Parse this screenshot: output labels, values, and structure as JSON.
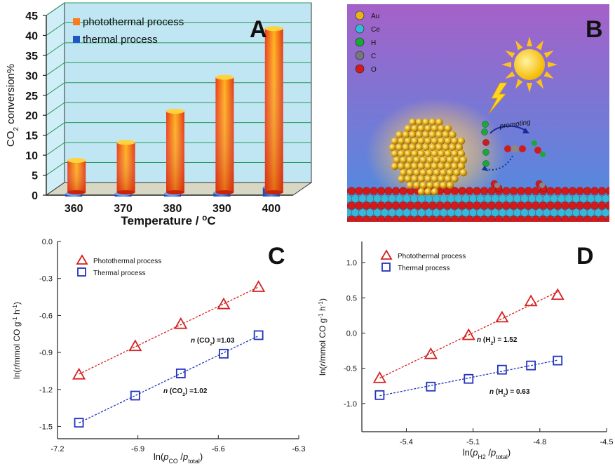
{
  "panels": {
    "A": {
      "letter": "A"
    },
    "B": {
      "letter": "B"
    },
    "C": {
      "letter": "C"
    },
    "D": {
      "letter": "D"
    }
  },
  "panel_b": {
    "legend": [
      "Au",
      "Ce",
      "H",
      "C",
      "O"
    ],
    "legend_colors": [
      "#e8b41c",
      "#36b9d6",
      "#19a83a",
      "#777777",
      "#d11a1a"
    ],
    "promoting_label": "promoting",
    "sky_top": "#a561c8",
    "sky_bottom": "#4d8fe0"
  },
  "chart_data": [
    {
      "panel": "A",
      "type": "bar",
      "categories": [
        "360",
        "370",
        "380",
        "390",
        "400"
      ],
      "series": [
        {
          "name": "photothermal process",
          "values": [
            8.0,
            12.5,
            20.3,
            28.8,
            41.0
          ],
          "color": "#e5391b"
        },
        {
          "name": "thermal process",
          "values": [
            0.1,
            0.1,
            0.5,
            1.0,
            2.3
          ],
          "color": "#1f57c4"
        }
      ],
      "xlabel": "Temperature / °C",
      "ylabel": "CO2 conversion%",
      "ylim": [
        0,
        45
      ],
      "yticks": [
        "0",
        "5",
        "10",
        "15",
        "20",
        "25",
        "30",
        "35",
        "40",
        "45"
      ],
      "grid": true,
      "legend_position": "top-left"
    },
    {
      "panel": "C",
      "type": "scatter",
      "xlabel": "ln(pCO/ptotal)",
      "ylabel": "ln(r/mmol CO g-1 h-1)",
      "xlim": [
        -7.2,
        -6.3
      ],
      "ylim": [
        -1.6,
        0.0
      ],
      "xticks": [
        "-7.2",
        "-6.9",
        "-6.6",
        "-6.3"
      ],
      "yticks": [
        "0.0",
        "-0.3",
        "-0.6",
        "-0.9",
        "-1.2",
        "-1.5"
      ],
      "legend_position": "top-left",
      "series": [
        {
          "name": "Photothermal process",
          "color": "#d62020",
          "marker": "triangle",
          "x": [
            -7.12,
            -6.91,
            -6.74,
            -6.58,
            -6.45
          ],
          "y": [
            -1.08,
            -0.85,
            -0.67,
            -0.51,
            -0.37
          ],
          "annotation": "n (CO2) =1.03"
        },
        {
          "name": "Thermal process",
          "color": "#2233bb",
          "marker": "square",
          "x": [
            -7.12,
            -6.91,
            -6.74,
            -6.58,
            -6.45
          ],
          "y": [
            -1.47,
            -1.25,
            -1.07,
            -0.91,
            -0.76
          ],
          "annotation": "n (CO2) =1.02"
        }
      ]
    },
    {
      "panel": "D",
      "type": "scatter",
      "xlabel": "ln(pH2/ptotal)",
      "ylabel": "ln(r/mmol CO g-1 h-1)",
      "xlim": [
        -5.6,
        -4.5
      ],
      "ylim": [
        -1.4,
        1.3
      ],
      "xticks": [
        "-5.4",
        "-5.1",
        "-4.8",
        "-4.5"
      ],
      "xtick_values": [
        -5.4,
        -5.1,
        -4.8,
        -4.5
      ],
      "yticks": [
        "1.0",
        "0.5",
        "0.0",
        "-0.5",
        "-1.0"
      ],
      "ytick_values": [
        1.0,
        0.5,
        0.0,
        -0.5,
        -1.0
      ],
      "legend_position": "top-left",
      "series": [
        {
          "name": "Photothermal process",
          "color": "#d62020",
          "marker": "triangle",
          "x": [
            -5.52,
            -5.29,
            -5.12,
            -4.97,
            -4.84,
            -4.72
          ],
          "y": [
            -0.64,
            -0.3,
            -0.03,
            0.22,
            0.45,
            0.54
          ],
          "annotation": "n (H2) = 1.52"
        },
        {
          "name": "Thermal process",
          "color": "#2233bb",
          "marker": "square",
          "x": [
            -5.52,
            -5.29,
            -5.12,
            -4.97,
            -4.84,
            -4.72
          ],
          "y": [
            -0.88,
            -0.76,
            -0.65,
            -0.52,
            -0.46,
            -0.39
          ],
          "annotation": "n (H2) = 0.63"
        }
      ]
    }
  ]
}
